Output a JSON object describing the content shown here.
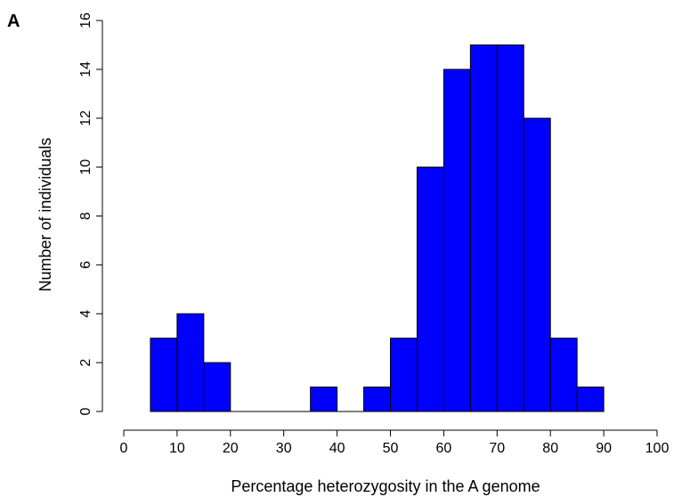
{
  "panel_label": "A",
  "chart_data": {
    "type": "bar",
    "title": "",
    "xlabel": "Percentage heterozygosity in the A genome",
    "ylabel": "Number of individuals",
    "bin_edges": [
      5,
      10,
      15,
      20,
      25,
      30,
      35,
      40,
      45,
      50,
      55,
      60,
      65,
      70,
      75,
      80,
      85,
      90
    ],
    "values": [
      3,
      4,
      2,
      0,
      0,
      0,
      1,
      0,
      1,
      3,
      10,
      14,
      15,
      15,
      12,
      3,
      1
    ],
    "xlim": [
      0,
      100
    ],
    "ylim": [
      0,
      16
    ],
    "x_ticks": [
      "0",
      "10",
      "20",
      "30",
      "40",
      "50",
      "60",
      "70",
      "80",
      "90",
      "100"
    ],
    "y_ticks": [
      "0",
      "2",
      "4",
      "6",
      "8",
      "10",
      "12",
      "14",
      "16"
    ],
    "bar_color": "#0000ff",
    "grid": false
  }
}
